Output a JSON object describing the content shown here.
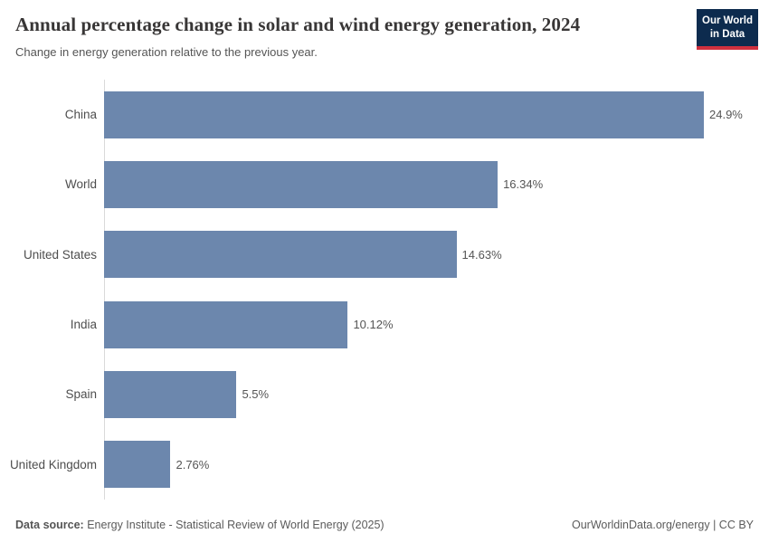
{
  "header": {
    "title": "Annual percentage change in solar and wind energy generation, 2024",
    "subtitle": "Change in energy generation relative to the previous year.",
    "logo": {
      "line1": "Our World",
      "line2": "in Data"
    }
  },
  "chart_data": {
    "type": "bar",
    "orientation": "horizontal",
    "title": "Annual percentage change in solar and wind energy generation, 2024",
    "categories": [
      "China",
      "World",
      "United States",
      "India",
      "Spain",
      "United Kingdom"
    ],
    "values": [
      24.9,
      16.34,
      14.63,
      10.12,
      5.5,
      2.76
    ],
    "value_labels": [
      "24.9%",
      "16.34%",
      "14.63%",
      "10.12%",
      "5.5%",
      "2.76%"
    ],
    "unit": "%",
    "xlabel": "",
    "ylabel": "",
    "xlim": [
      0,
      24.9
    ],
    "grid": false,
    "legend": "none"
  },
  "footer": {
    "data_source_label": "Data source:",
    "data_source_text": " Energy Institute - Statistical Review of World Energy (2025)",
    "attribution": "OurWorldinData.org/energy | CC BY"
  },
  "colors": {
    "bar": "#6c87ad",
    "logo_bg": "#0d2b4e",
    "logo_accent": "#cf303e",
    "title_text": "#383636",
    "muted_text": "#555555",
    "axis_line": "#dadada"
  }
}
